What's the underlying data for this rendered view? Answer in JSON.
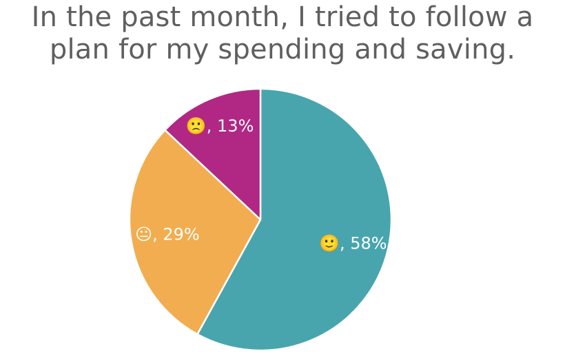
{
  "chart_data": {
    "type": "pie",
    "title_lines": [
      "In the past month, I tried to follow a",
      "plan for my spending and saving."
    ],
    "slices": [
      {
        "label": "🙂, 58%",
        "icon": "slightly-smiling-face",
        "value": 58,
        "color": "#48a5ae"
      },
      {
        "label": "😐, 29%",
        "icon": "neutral-face",
        "value": 29,
        "color": "#f1ad4f"
      },
      {
        "label": "🙁, 13%",
        "icon": "slightly-frowning-face",
        "value": 13,
        "color": "#b02884"
      }
    ],
    "start": "12 o'clock",
    "direction": "clockwise",
    "legend": "none"
  }
}
